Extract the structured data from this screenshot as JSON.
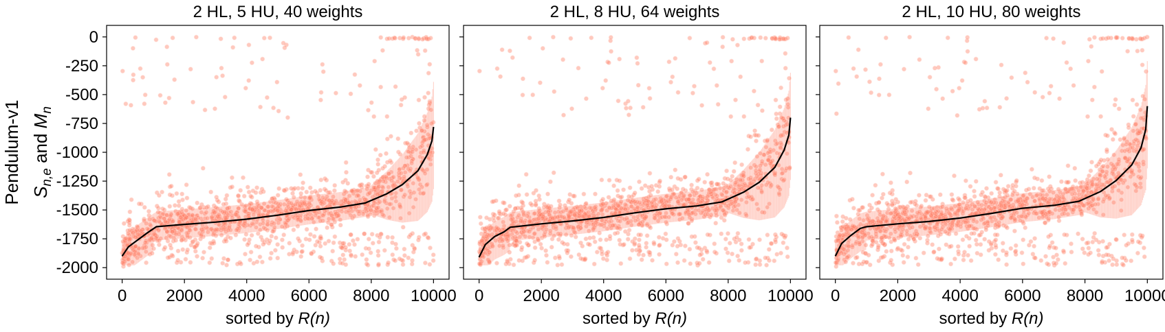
{
  "figure": {
    "row_label": "Pendulum-v1",
    "ylabel": {
      "s": "S",
      "s_sub": "n,e",
      "and": " and ",
      "m": "M",
      "m_sub": "n"
    },
    "xlabel_prefix": "sorted by ",
    "xlabel_var": "R(n)"
  },
  "colors": {
    "scatter": "#ff7f66",
    "scatter_stroke": "#ffd2c8",
    "band": "#ffb4a6",
    "mean_line": "#000000",
    "frame": "#000000"
  },
  "chart_data": [
    {
      "type": "scatter",
      "title": "2 HL, 5 HU, 40 weights",
      "xlim": [
        -500,
        10500
      ],
      "ylim": [
        -2100,
        100
      ],
      "xticks": [
        0,
        2000,
        4000,
        6000,
        8000,
        10000
      ],
      "yticks": [
        0,
        -250,
        -500,
        -750,
        -1000,
        -1250,
        -1500,
        -1750,
        -2000
      ],
      "ytick_labels": [
        "0",
        "-250",
        "-500",
        "-750",
        "-1000",
        "-1250",
        "-1500",
        "-1750",
        "-2000"
      ],
      "series": [
        {
          "kind": "mean_line",
          "x": [
            0,
            200,
            500,
            800,
            1100,
            2000,
            3000,
            4000,
            5000,
            6000,
            7000,
            7800,
            8500,
            9000,
            9500,
            9800,
            9950,
            10000
          ],
          "y": [
            -1900,
            -1820,
            -1760,
            -1700,
            -1645,
            -1625,
            -1605,
            -1580,
            -1545,
            -1505,
            -1475,
            -1440,
            -1360,
            -1280,
            -1160,
            -1020,
            -900,
            -780
          ]
        }
      ]
    },
    {
      "type": "scatter",
      "title": "2 HL, 8 HU, 64 weights",
      "xlim": [
        -500,
        10500
      ],
      "ylim": [
        -2100,
        100
      ],
      "xticks": [
        0,
        2000,
        4000,
        6000,
        8000,
        10000
      ],
      "yticks": [
        0,
        -250,
        -500,
        -750,
        -1000,
        -1250,
        -1500,
        -1750,
        -2000
      ],
      "ytick_labels": [
        "0",
        "-250",
        "-500",
        "-750",
        "-1000",
        "-1250",
        "-1500",
        "-1750",
        "-2000"
      ],
      "series": [
        {
          "kind": "mean_line",
          "x": [
            0,
            200,
            500,
            800,
            1000,
            2000,
            3000,
            4000,
            5000,
            6000,
            7000,
            7800,
            8500,
            9000,
            9500,
            9800,
            9950,
            10000
          ],
          "y": [
            -1910,
            -1800,
            -1730,
            -1690,
            -1650,
            -1620,
            -1595,
            -1565,
            -1525,
            -1490,
            -1465,
            -1430,
            -1345,
            -1260,
            -1130,
            -980,
            -850,
            -700
          ]
        }
      ]
    },
    {
      "type": "scatter",
      "title": "2 HL, 10 HU, 80 weights",
      "xlim": [
        -500,
        10500
      ],
      "ylim": [
        -2100,
        100
      ],
      "xticks": [
        0,
        2000,
        4000,
        6000,
        8000,
        10000
      ],
      "yticks": [
        0,
        -250,
        -500,
        -750,
        -1000,
        -1250,
        -1500,
        -1750,
        -2000
      ],
      "ytick_labels": [
        "0",
        "-250",
        "-500",
        "-750",
        "-1000",
        "-1250",
        "-1500",
        "-1750",
        "-2000"
      ],
      "series": [
        {
          "kind": "mean_line",
          "x": [
            0,
            200,
            500,
            800,
            1000,
            2000,
            3000,
            4000,
            5000,
            6000,
            7000,
            7800,
            8500,
            9000,
            9500,
            9800,
            9950,
            10000
          ],
          "y": [
            -1900,
            -1790,
            -1720,
            -1660,
            -1645,
            -1620,
            -1600,
            -1570,
            -1530,
            -1485,
            -1460,
            -1425,
            -1340,
            -1245,
            -1110,
            -960,
            -800,
            -600
          ]
        }
      ]
    }
  ]
}
